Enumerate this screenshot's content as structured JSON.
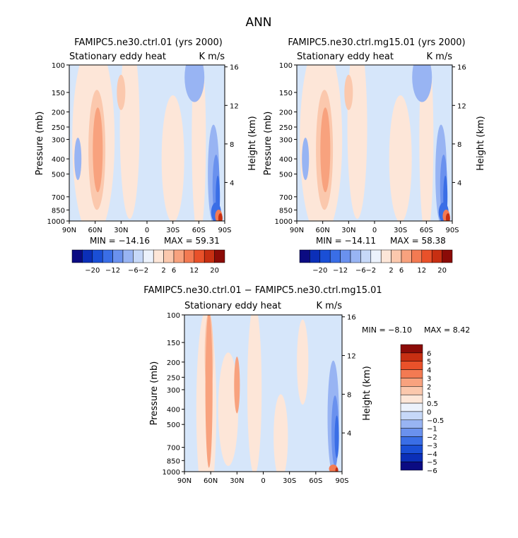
{
  "figure_title": "ANN",
  "colors": {
    "full_scale": [
      "#0b0b82",
      "#0b2fb8",
      "#1a4fd6",
      "#3a6ee6",
      "#6a91ee",
      "#98b4f3",
      "#c6d8f8",
      "#ecf2fc",
      "#fde6d8",
      "#fbc8ad",
      "#f8a27e",
      "#f37a52",
      "#e9512a",
      "#c72f12",
      "#8b0b07"
    ],
    "diff_scale": [
      "#0b0b82",
      "#0b2fb8",
      "#1a4fd6",
      "#3a6ee6",
      "#6a91ee",
      "#98b4f3",
      "#c6d8f8",
      "#ecf2fc",
      "#fde6d8",
      "#fbc8ad",
      "#f8a27e",
      "#f37a52",
      "#e9512a",
      "#c72f12",
      "#8b0b07"
    ]
  },
  "chart_data": [
    {
      "type": "heatmap",
      "title": "FAMIPC5.ne30.ctrl.01 (yrs 2000)",
      "left_string": "Stationary eddy heat",
      "right_string": "K m/s",
      "ylabel": "Pressure (mb)",
      "ylabel_right": "Height (km)",
      "x_ticks": [
        "90N",
        "60N",
        "30N",
        "0",
        "30S",
        "60S",
        "90S"
      ],
      "y_ticks": [
        "100",
        "150",
        "200",
        "250",
        "300",
        "400",
        "500",
        "700",
        "850",
        "1000"
      ],
      "y_right_ticks": [
        "16",
        "12",
        "8",
        "4"
      ],
      "min_text": "MIN = −14.16",
      "max_text": "MAX = 59.31",
      "colorbar_labels": [
        "−20",
        "−12",
        "−6",
        "−2",
        "2",
        "6",
        "12",
        "20"
      ]
    },
    {
      "type": "heatmap",
      "title": "FAMIPC5.ne30.ctrl.mg15.01 (yrs 2000)",
      "left_string": "Stationary eddy heat",
      "right_string": "K m/s",
      "ylabel": "Pressure (mb)",
      "ylabel_right": "Height (km)",
      "x_ticks": [
        "90N",
        "60N",
        "30N",
        "0",
        "30S",
        "60S",
        "90S"
      ],
      "y_ticks": [
        "100",
        "150",
        "200",
        "250",
        "300",
        "400",
        "500",
        "700",
        "850",
        "1000"
      ],
      "y_right_ticks": [
        "16",
        "12",
        "8",
        "4"
      ],
      "min_text": "MIN = −14.11",
      "max_text": "MAX = 58.38",
      "colorbar_labels": [
        "−20",
        "−12",
        "−6",
        "−2",
        "2",
        "6",
        "12",
        "20"
      ]
    },
    {
      "type": "heatmap",
      "title": "FAMIPC5.ne30.ctrl.01 − FAMIPC5.ne30.ctrl.mg15.01",
      "left_string": "Stationary eddy heat",
      "right_string": "K m/s",
      "ylabel": "Pressure (mb)",
      "ylabel_right": "Height (km)",
      "x_ticks": [
        "90N",
        "60N",
        "30N",
        "0",
        "30S",
        "60S",
        "90S"
      ],
      "y_ticks": [
        "100",
        "150",
        "200",
        "250",
        "300",
        "400",
        "500",
        "700",
        "850",
        "1000"
      ],
      "y_right_ticks": [
        "16",
        "12",
        "8",
        "4"
      ],
      "min_text": "MIN = −8.10",
      "max_text": "MAX = 8.42",
      "colorbar_labels": [
        "6",
        "5",
        "4",
        "3",
        "2",
        "1",
        "0.5",
        "0",
        "−0.5",
        "−1",
        "−2",
        "−3",
        "−4",
        "−5",
        "−6"
      ]
    }
  ]
}
